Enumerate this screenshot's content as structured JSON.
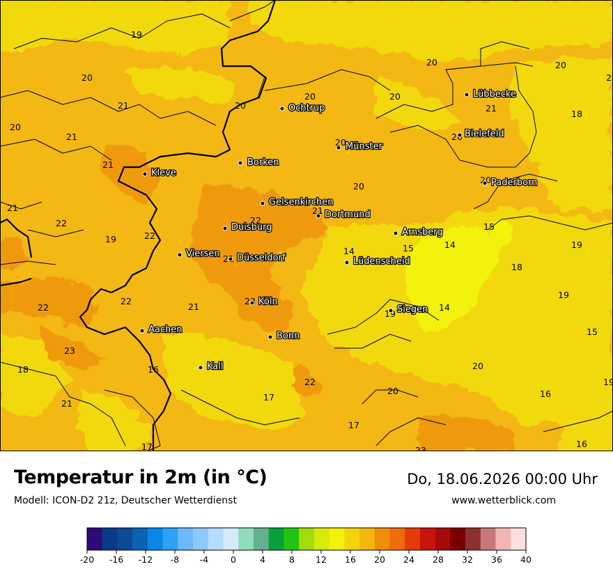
{
  "header": {
    "title": "Temperatur in 2m (in °C)",
    "subtitle": "Modell: ICON-D2 21z, Deutscher Wetterdienst",
    "datetime": "Do, 18.06.2026 00:00 Uhr",
    "website": "www.wetterblick.com"
  },
  "colors": {
    "background_temp_20": "#f3b813",
    "temp_22": "#ef9a10",
    "temp_18": "#f2d90c",
    "temp_15": "#f2f20a",
    "border": "#000000"
  },
  "cities": [
    {
      "name": "Ochtrup"
    },
    {
      "name": "Lübbecke"
    },
    {
      "name": "Bielefeld"
    },
    {
      "name": "Münster"
    },
    {
      "name": "Borken"
    },
    {
      "name": "Kleve"
    },
    {
      "name": "Paderborn"
    },
    {
      "name": "Gelsenkirchen"
    },
    {
      "name": "Dortmund"
    },
    {
      "name": "Duisburg"
    },
    {
      "name": "Arnsberg"
    },
    {
      "name": "Viersen"
    },
    {
      "name": "Düsseldorf"
    },
    {
      "name": "Lüdenscheid"
    },
    {
      "name": "Köln"
    },
    {
      "name": "Siegen"
    },
    {
      "name": "Aachen"
    },
    {
      "name": "Bonn"
    },
    {
      "name": "Kall"
    }
  ],
  "temperatures": [
    "19",
    "20",
    "21",
    "20",
    "21",
    "21",
    "20",
    "21",
    "22",
    "19",
    "22",
    "22",
    "21",
    "22",
    "23",
    "18",
    "16",
    "21",
    "17",
    "20",
    "20",
    "20",
    "20",
    "20",
    "20",
    "21",
    "20",
    "20",
    "22",
    "21",
    "14",
    "15",
    "14",
    "15",
    "23",
    "21",
    "22",
    "17",
    "17",
    "23",
    "20",
    "21",
    "18",
    "19",
    "18",
    "19",
    "15",
    "20",
    "16",
    "19",
    "16",
    "14",
    "19"
  ],
  "legend": {
    "ticks": [
      "-20",
      "-16",
      "-12",
      "-8",
      "-4",
      "0",
      "4",
      "8",
      "12",
      "16",
      "20",
      "24",
      "28",
      "32",
      "36",
      "40"
    ],
    "colors": [
      "#2d0a7a",
      "#0a3a8c",
      "#0a4a96",
      "#0a62b4",
      "#0a86e8",
      "#2ea0f8",
      "#6cb8f8",
      "#8ecaf8",
      "#b4dcfc",
      "#d6e8fc",
      "#8edcbc",
      "#62b08e",
      "#08a038",
      "#22c412",
      "#a2dc0a",
      "#d8ea0a",
      "#f2f20a",
      "#f2d40a",
      "#f2b80a",
      "#ef8c0a",
      "#ee6c0a",
      "#e63a0a",
      "#c8140a",
      "#a80a0a",
      "#780000",
      "#8c3030",
      "#c87878",
      "#f4b4b4",
      "#fce0e0"
    ]
  }
}
